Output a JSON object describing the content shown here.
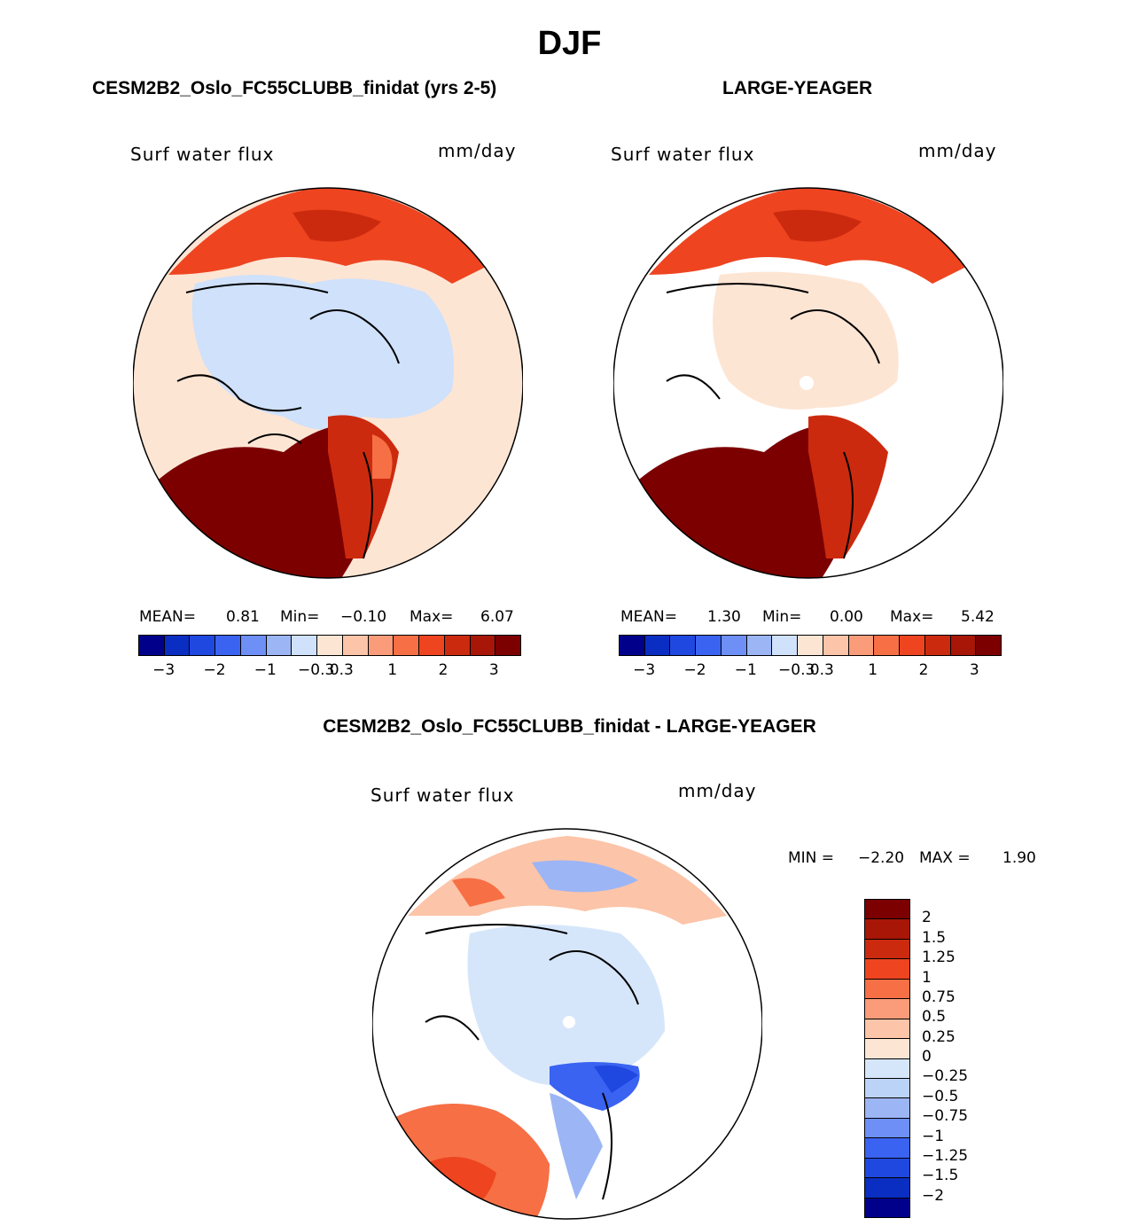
{
  "title": "DJF",
  "panels": {
    "left": {
      "title": "CESM2B2_Oslo_FC55CLUBB_finidat (yrs 2-5)",
      "var_label": "Surf water flux",
      "units": "mm/day",
      "mean_label": "MEAN=",
      "mean": "0.81",
      "min_label": "Min=",
      "min": "−0.10",
      "max_label": "Max=",
      "max": "6.07"
    },
    "right": {
      "title": "LARGE-YEAGER",
      "var_label": "Surf water flux",
      "units": "mm/day",
      "mean_label": "MEAN=",
      "mean": "1.30",
      "min_label": "Min=",
      "min": "0.00",
      "max_label": "Max=",
      "max": "5.42"
    },
    "diff": {
      "title": "CESM2B2_Oslo_FC55CLUBB_finidat - LARGE-YEAGER",
      "var_label": "Surf water flux",
      "units": "mm/day",
      "min_label": "MIN =",
      "min": "−2.20",
      "max_label": "MAX =",
      "max": "1.90"
    }
  },
  "colorbar_main": {
    "colors": [
      "#00008b",
      "#0a2ec2",
      "#1f48e0",
      "#3a63f2",
      "#6e8ff5",
      "#9cb5f5",
      "#cfe1fb",
      "#fde5d4",
      "#fcc4a8",
      "#fa9c7a",
      "#f76f45",
      "#ee4420",
      "#cc2a0e",
      "#a81608",
      "#7c0000"
    ],
    "ticks": [
      "−3",
      "−2",
      "−1",
      "−0.3",
      "0.3",
      "1",
      "2",
      "3"
    ]
  },
  "colorbar_diff": {
    "colors": [
      "#7c0000",
      "#a81608",
      "#cc2a0e",
      "#ee4420",
      "#f76f45",
      "#fa9c7a",
      "#fcc4a8",
      "#fde5d4",
      "#d6e6fa",
      "#bcd3f8",
      "#9cb5f5",
      "#6e8ff5",
      "#3a63f2",
      "#1f48e0",
      "#0a2ec2",
      "#00008b"
    ],
    "ticks": [
      "2",
      "1.5",
      "1.25",
      "1",
      "0.75",
      "0.5",
      "0.25",
      "0",
      "−0.25",
      "−0.5",
      "−0.75",
      "−1",
      "−1.25",
      "−1.5",
      "−2"
    ]
  }
}
